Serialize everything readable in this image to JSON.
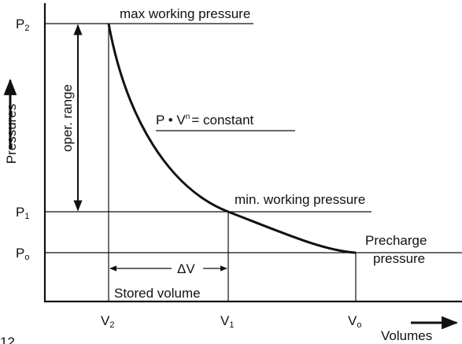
{
  "diagram": {
    "pressures": [
      {
        "letter": "P",
        "sub": "2"
      },
      {
        "letter": "P",
        "sub": "1"
      },
      {
        "letter": "P",
        "sub": "o"
      }
    ],
    "volumes": [
      {
        "letter": "V",
        "sub": "2"
      },
      {
        "letter": "V",
        "sub": "1"
      },
      {
        "letter": "V",
        "sub": "o"
      }
    ],
    "y_axis_label": "Pressures",
    "x_axis_label": "Volumes",
    "max_label": "max working pressure",
    "min_label": "min. working pressure",
    "law": {
      "main": "P • V",
      "exp": "n",
      "rest": "= constant"
    },
    "precharge": [
      "Precharge",
      "pressure"
    ],
    "range_label": "oper. range",
    "delta_label": "ΔV",
    "stored_label": "Stored volume",
    "figure_number": "12"
  }
}
